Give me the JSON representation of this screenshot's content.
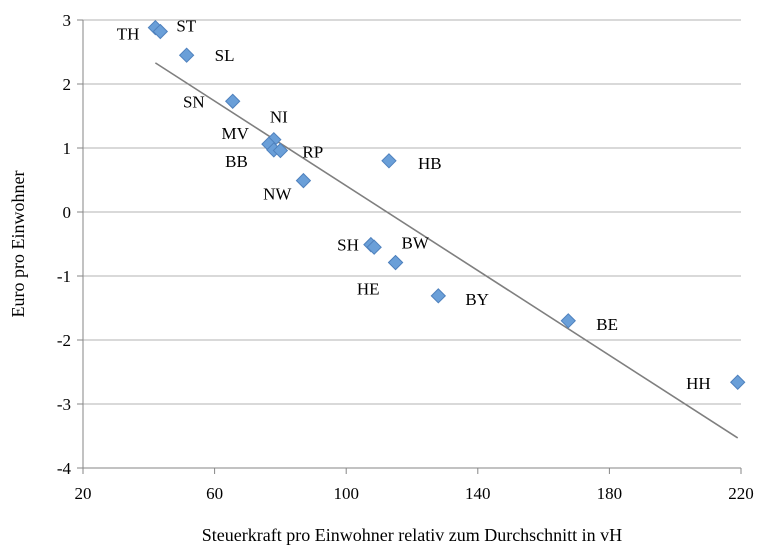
{
  "chart_data": {
    "type": "scatter",
    "title": "",
    "xlabel": "Steuerkraft pro Einwohner relativ zum Durchschnitt in vH",
    "ylabel": "Euro pro Einwohner",
    "xlim": [
      20,
      220
    ],
    "ylim": [
      -4,
      3
    ],
    "xticks": [
      20,
      60,
      100,
      140,
      180,
      220
    ],
    "yticks": [
      -4,
      -3,
      -2,
      -1,
      0,
      1,
      2,
      3
    ],
    "grid": "horizontal",
    "marker": "diamond",
    "marker_color": "#6a9fd8",
    "trendline": {
      "type": "linear",
      "color": "#7f7f7f",
      "x": [
        42,
        219
      ],
      "y": [
        2.33,
        -3.53
      ]
    },
    "points": [
      {
        "label": "TH",
        "x": 42,
        "y": 2.88
      },
      {
        "label": "ST",
        "x": 43.5,
        "y": 2.82
      },
      {
        "label": "SL",
        "x": 51.5,
        "y": 2.45
      },
      {
        "label": "SN",
        "x": 65.5,
        "y": 1.73
      },
      {
        "label": "NI",
        "x": 78,
        "y": 1.13
      },
      {
        "label": "MV",
        "x": 76.5,
        "y": 1.06
      },
      {
        "label": "BB",
        "x": 78,
        "y": 0.97
      },
      {
        "label": "RP",
        "x": 80,
        "y": 0.96
      },
      {
        "label": "HB",
        "x": 113,
        "y": 0.8
      },
      {
        "label": "NW",
        "x": 87,
        "y": 0.49
      },
      {
        "label": "SH",
        "x": 107.5,
        "y": -0.51
      },
      {
        "label": "",
        "x": 108.5,
        "y": -0.55
      },
      {
        "label": "BW",
        "x": 115,
        "y": -0.79
      },
      {
        "label": "HE",
        "x": 115,
        "y": -0.79
      },
      {
        "label": "BY",
        "x": 128,
        "y": -1.31
      },
      {
        "label": "BE",
        "x": 167.5,
        "y": -1.7
      },
      {
        "label": "HH",
        "x": 219,
        "y": -2.66
      }
    ]
  }
}
